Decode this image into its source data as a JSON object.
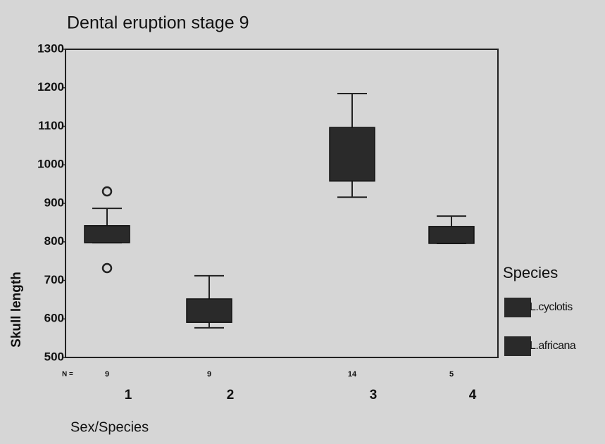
{
  "chart_data": {
    "type": "box",
    "title": "Dental eruption stage 9",
    "x_label": "Sex/Species",
    "y_label": "Skull length",
    "categories": [
      "1",
      "2",
      "3",
      "4"
    ],
    "n_label": "N =",
    "n": [
      9,
      9,
      14,
      5
    ],
    "boxes": [
      {
        "whisker_low": 798,
        "q1": 798,
        "q3": 842,
        "whisker_high": 887,
        "outliers": [
          931,
          732
        ]
      },
      {
        "whisker_low": 577,
        "q1": 591,
        "q3": 652,
        "whisker_high": 712,
        "outliers": []
      },
      {
        "whisker_low": 916,
        "q1": 958,
        "q3": 1097,
        "whisker_high": 1185,
        "outliers": []
      },
      {
        "whisker_low": 796,
        "q1": 796,
        "q3": 840,
        "whisker_high": 867,
        "outliers": []
      }
    ],
    "box_color": "#2a2a2a",
    "ylim": [
      500,
      1300
    ],
    "yticks": [
      500,
      600,
      700,
      800,
      900,
      1000,
      1100,
      1200,
      1300
    ],
    "legend": {
      "title": "Species",
      "position": "right",
      "entries": [
        {
          "name": "L.cyclotis",
          "color": "#2a2a2a"
        },
        {
          "name": "L.africana",
          "color": "#2a2a2a"
        }
      ]
    }
  }
}
